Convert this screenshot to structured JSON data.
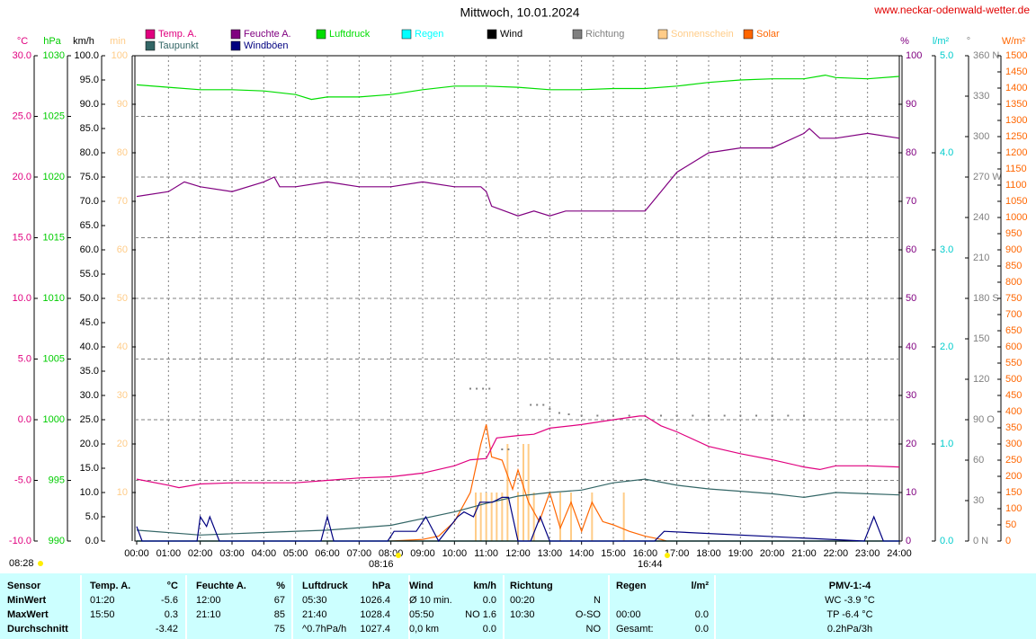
{
  "chart_data": {
    "type": "line",
    "title": "Mittwoch, 10.01.2024",
    "source": "www.neckar-odenwald-wetter.de",
    "xlim": [
      0,
      24
    ],
    "xticks": [
      {
        "value": 0,
        "label": "00:00"
      },
      {
        "value": 1,
        "label": "01:00"
      },
      {
        "value": 2,
        "label": "02:00"
      },
      {
        "value": 3,
        "label": "03:00"
      },
      {
        "value": 4,
        "label": "04:00"
      },
      {
        "value": 5,
        "label": "05:00"
      },
      {
        "value": 6,
        "label": "06:00"
      },
      {
        "value": 7,
        "label": "07:00"
      },
      {
        "value": 8,
        "label": "08:00"
      },
      {
        "value": 9,
        "label": "09:00"
      },
      {
        "value": 10,
        "label": "10:00"
      },
      {
        "value": 11,
        "label": "11:00"
      },
      {
        "value": 12,
        "label": "12:00"
      },
      {
        "value": 13,
        "label": "13:00"
      },
      {
        "value": 14,
        "label": "14:00"
      },
      {
        "value": 15,
        "label": "15:00"
      },
      {
        "value": 16,
        "label": "16:00"
      },
      {
        "value": 17,
        "label": "17:00"
      },
      {
        "value": 18,
        "label": "18:00"
      },
      {
        "value": 19,
        "label": "19:00"
      },
      {
        "value": 20,
        "label": "20:00"
      },
      {
        "value": 21,
        "label": "21:00"
      },
      {
        "value": 22,
        "label": "22:00"
      },
      {
        "value": 23,
        "label": "23:00"
      },
      {
        "value": 24,
        "label": "24:00"
      }
    ],
    "grid": true,
    "axes": {
      "temp": {
        "label": "°C",
        "color": "#e0007f",
        "lim": [
          -10,
          30
        ],
        "ticks": [
          {
            "value": 30,
            "label": "30.0"
          },
          {
            "value": 25,
            "label": "25.0"
          },
          {
            "value": 20,
            "label": "20.0"
          },
          {
            "value": 15,
            "label": "15.0"
          },
          {
            "value": 10,
            "label": "10.0"
          },
          {
            "value": 5,
            "label": "5.0"
          },
          {
            "value": 0,
            "label": "0.0"
          },
          {
            "value": -5,
            "label": "-5.0"
          },
          {
            "value": -10,
            "label": "-10.0"
          }
        ]
      },
      "hpa": {
        "label": "hPa",
        "color": "#00cc00",
        "lim": [
          990,
          1030
        ],
        "ticks": [
          1030,
          1025,
          1020,
          1015,
          1010,
          1005,
          1000,
          995,
          990
        ]
      },
      "kmh": {
        "label": "km/h",
        "color": "#000000",
        "lim": [
          0,
          100
        ],
        "ticks": [
          {
            "value": 100,
            "label": "100.0"
          },
          {
            "value": 95,
            "label": "95.0"
          },
          {
            "value": 90,
            "label": "90.0"
          },
          {
            "value": 85,
            "label": "85.0"
          },
          {
            "value": 80,
            "label": "80.0"
          },
          {
            "value": 75,
            "label": "75.0"
          },
          {
            "value": 70,
            "label": "70.0"
          },
          {
            "value": 65,
            "label": "65.0"
          },
          {
            "value": 60,
            "label": "60.0"
          },
          {
            "value": 55,
            "label": "55.0"
          },
          {
            "value": 50,
            "label": "50.0"
          },
          {
            "value": 45,
            "label": "45.0"
          },
          {
            "value": 40,
            "label": "40.0"
          },
          {
            "value": 35,
            "label": "35.0"
          },
          {
            "value": 30,
            "label": "30.0"
          },
          {
            "value": 25,
            "label": "25.0"
          },
          {
            "value": 20,
            "label": "20.0"
          },
          {
            "value": 15,
            "label": "15.0"
          },
          {
            "value": 10,
            "label": "10.0"
          },
          {
            "value": 5,
            "label": "5.0"
          },
          {
            "value": 0,
            "label": "0.0"
          }
        ]
      },
      "min": {
        "label": "min",
        "color": "#ffcc88",
        "lim": [
          0,
          100
        ],
        "ticks": [
          100,
          90,
          80,
          70,
          60,
          50,
          40,
          30,
          20,
          10
        ]
      },
      "pct": {
        "label": "%",
        "color": "#800080",
        "lim": [
          0,
          100
        ],
        "ticks": [
          100,
          90,
          80,
          70,
          60,
          50,
          40,
          30,
          20,
          10,
          0
        ]
      },
      "rain": {
        "label": "l/m²",
        "color": "#00cccc",
        "lim": [
          0,
          5
        ],
        "ticks": [
          {
            "value": 5,
            "label": "5.0"
          },
          {
            "value": 4,
            "label": "4.0"
          },
          {
            "value": 3,
            "label": "3.0"
          },
          {
            "value": 2,
            "label": "2.0"
          },
          {
            "value": 1,
            "label": "1.0"
          },
          {
            "value": 0,
            "label": "0.0"
          }
        ]
      },
      "dir": {
        "label": "°",
        "color": "#808080",
        "lim": [
          0,
          360
        ],
        "ticks": [
          {
            "value": 360,
            "label": "360 N"
          },
          330,
          300,
          {
            "value": 270,
            "label": "270 W"
          },
          240,
          210,
          {
            "value": 180,
            "label": "180 S"
          },
          150,
          120,
          {
            "value": 90,
            "label": "90 O"
          },
          60,
          30,
          {
            "value": 0,
            "label": "0 N"
          }
        ]
      },
      "solar": {
        "label": "W/m²",
        "color": "#ff6600",
        "lim": [
          0,
          1500
        ],
        "ticks": [
          1500,
          1450,
          1400,
          1350,
          1300,
          1250,
          1200,
          1150,
          1100,
          1050,
          1000,
          950,
          900,
          850,
          800,
          750,
          700,
          650,
          600,
          550,
          500,
          450,
          400,
          350,
          300,
          250,
          200,
          150,
          100,
          50,
          0
        ]
      }
    },
    "series": [
      {
        "name": "Temp. A.",
        "color": "#e0007f",
        "axis": "temp",
        "style": "line",
        "x": [
          0,
          1,
          1.33,
          2,
          3,
          4,
          5,
          6,
          7,
          8,
          9,
          10,
          10.5,
          11,
          11.33,
          12,
          12.5,
          13,
          14,
          15,
          15.83,
          16,
          16.5,
          17,
          18,
          19,
          20,
          21,
          21.5,
          22,
          23,
          24
        ],
        "values": [
          -4.9,
          -5.4,
          -5.6,
          -5.3,
          -5.2,
          -5.2,
          -5.2,
          -5.0,
          -4.8,
          -4.7,
          -4.4,
          -3.8,
          -3.3,
          -3.2,
          -1.5,
          -1.3,
          -1.2,
          -0.7,
          -0.4,
          0.0,
          0.3,
          0.3,
          -0.5,
          -1.0,
          -2.2,
          -2.8,
          -3.3,
          -3.9,
          -4.1,
          -3.8,
          -3.8,
          -3.9
        ]
      },
      {
        "name": "Feuchte A.",
        "color": "#800080",
        "axis": "pct",
        "style": "line",
        "x": [
          0,
          1,
          1.5,
          2,
          3,
          4,
          4.33,
          4.5,
          5,
          6,
          7,
          8,
          9,
          10,
          10.83,
          11,
          11.17,
          12,
          12.5,
          13,
          13.5,
          14,
          15,
          16,
          16.5,
          17,
          18,
          19,
          20,
          21,
          21.17,
          21.5,
          22,
          23,
          24
        ],
        "values": [
          71,
          72,
          74,
          73,
          72,
          74,
          75,
          73,
          73,
          74,
          73,
          73,
          74,
          73,
          73,
          72,
          69,
          67,
          68,
          67,
          68,
          68,
          68,
          68,
          72,
          76,
          80,
          81,
          81,
          84,
          85,
          83,
          83,
          84,
          83
        ]
      },
      {
        "name": "Luftdruck",
        "color": "#00dd00",
        "axis": "hpa",
        "style": "line",
        "x": [
          0,
          1,
          2,
          3,
          4,
          5,
          5.5,
          6,
          7,
          8,
          9,
          10,
          11,
          12,
          13,
          14,
          15,
          16,
          17,
          18,
          19,
          20,
          21,
          21.67,
          22,
          23,
          24
        ],
        "values": [
          1027.6,
          1027.4,
          1027.2,
          1027.2,
          1027.1,
          1026.8,
          1026.4,
          1026.6,
          1026.6,
          1026.8,
          1027.2,
          1027.5,
          1027.5,
          1027.4,
          1027.2,
          1027.2,
          1027.3,
          1027.3,
          1027.5,
          1027.8,
          1028.0,
          1028.1,
          1028.1,
          1028.4,
          1028.2,
          1028.1,
          1028.3
        ]
      },
      {
        "name": "Regen",
        "color": "#00ffff",
        "axis": "rain",
        "style": "line",
        "x": [
          0,
          24
        ],
        "values": [
          0.0,
          0.0
        ]
      },
      {
        "name": "Wind",
        "color": "#000000",
        "axis": "kmh",
        "style": "line",
        "x": [
          0,
          24
        ],
        "values": [
          0.0,
          0.0
        ]
      },
      {
        "name": "Richtung",
        "color": "#808080",
        "axis": "dir",
        "style": "dots",
        "x": [
          10.5,
          10.7,
          10.9,
          11.1,
          11.5,
          11.7,
          12.4,
          12.6,
          12.8,
          13.0,
          13.3,
          13.6,
          14,
          14.5,
          15,
          15.5,
          16,
          16.5,
          17,
          17.5,
          18,
          18.5,
          19,
          19.5,
          20,
          20.5,
          21
        ],
        "values": [
          113,
          113,
          113,
          113,
          68,
          68,
          101,
          101,
          101,
          98,
          95,
          94,
          93,
          93,
          93,
          93,
          93,
          93,
          93,
          93,
          93,
          93,
          93,
          93,
          93,
          93,
          93
        ]
      },
      {
        "name": "Sonnenschein",
        "color": "#ffcc88",
        "axis": "min",
        "style": "bar",
        "x": [
          10.67,
          10.83,
          11,
          11.17,
          11.33,
          11.5,
          11.67,
          12,
          12.17,
          12.33,
          12.5,
          13.33,
          13.67,
          14.33,
          15.33
        ],
        "values": [
          10,
          10,
          10,
          10,
          10,
          10,
          20,
          10,
          20,
          20,
          10,
          10,
          10,
          10,
          10
        ]
      },
      {
        "name": "Solar",
        "color": "#ff6600",
        "axis": "solar",
        "style": "line",
        "x": [
          8,
          9,
          9.5,
          10,
          10.5,
          10.83,
          11,
          11.17,
          11.5,
          11.83,
          12,
          12.33,
          12.67,
          13,
          13.33,
          13.67,
          14,
          14.33,
          14.67,
          15,
          15.5,
          16,
          16.5,
          16.67
        ],
        "values": [
          0,
          5,
          15,
          60,
          150,
          300,
          360,
          260,
          250,
          160,
          220,
          120,
          60,
          150,
          40,
          120,
          30,
          120,
          60,
          50,
          30,
          15,
          5,
          0
        ]
      },
      {
        "name": "Taupunkt",
        "color": "#336666",
        "axis": "temp",
        "style": "line",
        "x": [
          0,
          2,
          4,
          6,
          8,
          10,
          11,
          12,
          13,
          14,
          15,
          16,
          17,
          18,
          19,
          20,
          21,
          22,
          23,
          24
        ],
        "values": [
          -9.1,
          -9.5,
          -9.3,
          -9.1,
          -8.7,
          -7.6,
          -6.9,
          -6.3,
          -6.0,
          -5.8,
          -5.2,
          -4.9,
          -5.4,
          -5.7,
          -5.9,
          -6.1,
          -6.4,
          -6.0,
          -6.1,
          -6.2
        ]
      },
      {
        "name": "Windböen",
        "color": "#000080",
        "axis": "kmh",
        "style": "line",
        "x": [
          0,
          0.17,
          1.9,
          2,
          2.2,
          2.3,
          2.6,
          5.8,
          6,
          6.2,
          7.9,
          8.1,
          8.8,
          9.1,
          9.5,
          10.1,
          10.3,
          10.6,
          10.8,
          11.2,
          11.5,
          11.7,
          12,
          12.4,
          12.7,
          13,
          16.3,
          16.6,
          22.9,
          23.2,
          23.5,
          24
        ],
        "values": [
          3,
          0,
          0,
          5,
          3,
          5,
          0,
          0,
          5,
          0,
          0,
          2,
          2,
          5,
          0,
          5,
          6,
          5,
          8,
          8,
          9,
          9,
          0,
          0,
          5,
          0,
          0,
          2,
          0,
          5,
          0,
          0
        ]
      }
    ],
    "annotations": [
      "08:28",
      "08:16",
      "16:44"
    ]
  },
  "table": {
    "header": [
      "Sensor",
      "Temp. A.",
      "°C",
      "Feuchte A.",
      "%",
      "Luftdruck",
      "hPa",
      "Wind",
      "km/h",
      "Richtung",
      null,
      "Regen",
      "l/m²",
      "PMV-1:-4"
    ],
    "rows": [
      [
        "MinWert",
        "01:20",
        "-5.6",
        "12:00",
        "67",
        "05:30",
        "1026.4",
        "Ø 10 min.",
        "0.0",
        "00:20",
        "N",
        null,
        null,
        "WC -3.9 °C"
      ],
      [
        "MaxWert",
        "15:50",
        "0.3",
        "21:10",
        "85",
        "21:40",
        "1028.4",
        "05:50",
        "NO 1.6",
        "10:30",
        "O-SO",
        "00:00",
        "0.0",
        "TP -6.4 °C"
      ],
      [
        "Durchschnitt",
        null,
        "-3.42",
        null,
        "75",
        "^0.7hPa/h",
        "1027.4",
        "0,0 km",
        "0.0",
        null,
        "NO",
        "Gesamt:",
        "0.0",
        "0.2hPa/3h"
      ]
    ]
  }
}
